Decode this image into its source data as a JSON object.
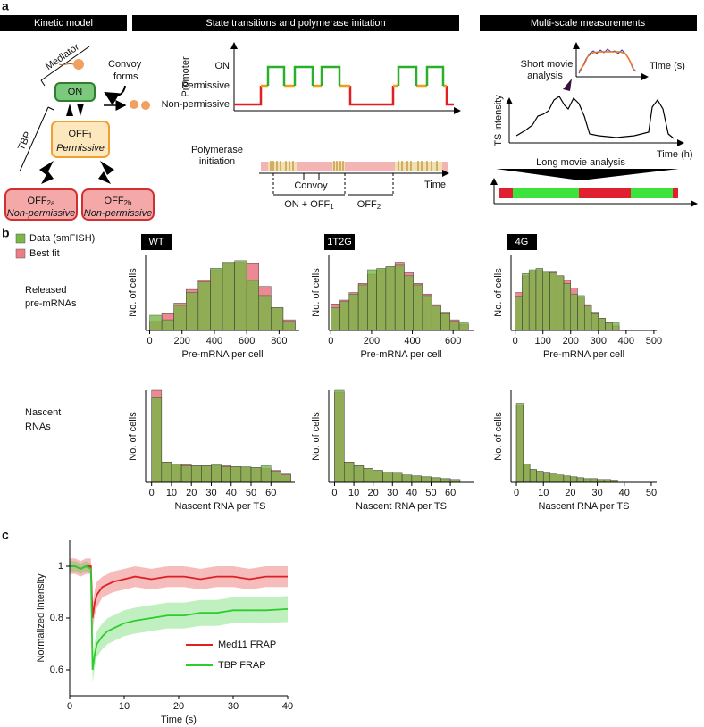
{
  "panel_a": {
    "label": "a",
    "headers": [
      "Kinetic model",
      "State transitions and polymerase initation",
      "Multi-scale measurements"
    ],
    "kinetic": {
      "mediator": "Mediator",
      "tbp": "TBP",
      "convoy": [
        "Convoy",
        "forms"
      ],
      "on": "ON",
      "off1": {
        "text": "OFF",
        "sub": "1",
        "note": "Permissive"
      },
      "off2a": {
        "text": "OFF",
        "sub": "2a",
        "note": "Non-permissive"
      },
      "off2b": {
        "text": "OFF",
        "sub": "2b",
        "note": "Non-permissive"
      }
    },
    "states": {
      "ylabel": "Promoter",
      "levels": [
        "ON",
        "Permissive",
        "Non-permissive"
      ],
      "polymerase": [
        "Polymerase",
        "initiation"
      ],
      "convoy": "Convoy",
      "time": "Time",
      "on_off1": {
        "text": "ON + OFF",
        "sub": "1"
      },
      "off2": {
        "text": "OFF",
        "sub": "2"
      }
    },
    "multi": {
      "short": [
        "Short movie",
        "analysis"
      ],
      "time_s": "Time (s)",
      "ts": "TS intensity",
      "time_h": "Time (h)",
      "long": "Long movie analysis"
    }
  },
  "panel_b": {
    "label": "b",
    "rows": [
      [
        "Released",
        "pre-mRNAs"
      ],
      [
        "Nascent",
        "RNAs"
      ]
    ],
    "legend": [
      {
        "name": "Data (smFISH)",
        "color": "#7ab648"
      },
      {
        "name": "Best fit",
        "color": "#ec7d87"
      }
    ]
  },
  "panel_c": {
    "label": "c"
  },
  "chart_data": [
    {
      "type": "histogram",
      "tag": "WT",
      "xlabel": "Pre-mRNA per cell",
      "ylabel": "No. of cells",
      "bins": [
        0,
        75,
        150,
        225,
        300,
        375,
        450,
        525,
        600,
        675,
        750,
        825,
        900
      ],
      "series": [
        {
          "color": "#7ab648",
          "values": [
            20,
            14,
            33,
            50,
            64,
            82,
            90,
            92,
            66,
            46,
            30,
            12
          ]
        },
        {
          "color": "#ec7d87",
          "values": [
            12,
            22,
            36,
            54,
            66,
            80,
            88,
            90,
            88,
            58,
            30,
            14
          ]
        }
      ],
      "xlim": [
        -25,
        925
      ],
      "ylim": [
        0,
        100
      ],
      "xticks": [
        0,
        200,
        400,
        600,
        800
      ]
    },
    {
      "type": "histogram",
      "tag": "1T2G",
      "xlabel": "Pre-mRNA per cell",
      "ylabel": "No. of cells",
      "bins": [
        0,
        45,
        90,
        135,
        180,
        225,
        270,
        315,
        360,
        405,
        450,
        495,
        540,
        585,
        630,
        675
      ],
      "series": [
        {
          "color": "#7ab648",
          "values": [
            30,
            38,
            48,
            60,
            80,
            82,
            84,
            86,
            72,
            60,
            46,
            32,
            22,
            12,
            10
          ]
        },
        {
          "color": "#ec7d87",
          "values": [
            35,
            40,
            50,
            62,
            74,
            80,
            84,
            90,
            76,
            62,
            48,
            34,
            24,
            14,
            8
          ]
        }
      ],
      "xlim": [
        -10,
        700
      ],
      "ylim": [
        0,
        100
      ],
      "xticks": [
        0,
        200,
        400,
        600
      ]
    },
    {
      "type": "histogram",
      "tag": "4G",
      "xlabel": "Pre-mRNA per cell",
      "ylabel": "No. of cells",
      "bins": [
        0,
        25,
        50,
        75,
        100,
        125,
        150,
        175,
        200,
        225,
        250,
        275,
        300,
        325,
        350,
        375
      ],
      "series": [
        {
          "color": "#7ab648",
          "values": [
            45,
            75,
            80,
            82,
            78,
            76,
            72,
            62,
            48,
            46,
            32,
            22,
            16,
            10,
            10
          ]
        },
        {
          "color": "#ec7d87",
          "values": [
            50,
            72,
            78,
            80,
            76,
            78,
            72,
            66,
            56,
            44,
            34,
            24,
            16,
            10,
            6
          ]
        }
      ],
      "xlim": [
        -15,
        510
      ],
      "ylim": [
        0,
        100
      ],
      "xticks": [
        0,
        100,
        200,
        300,
        400,
        500
      ]
    },
    {
      "type": "histogram",
      "xlabel": "Nascent RNA per TS",
      "ylabel": "No. of cells",
      "bins": [
        0,
        5,
        10,
        15,
        20,
        25,
        30,
        35,
        40,
        45,
        50,
        55,
        60,
        65,
        70
      ],
      "series": [
        {
          "color": "#7ab648",
          "values": [
            92,
            22,
            20,
            18,
            18,
            18,
            19,
            17,
            17,
            17,
            16,
            18,
            12,
            8
          ]
        },
        {
          "color": "#ec7d87",
          "values": [
            100,
            22,
            20,
            19,
            18,
            18,
            18,
            18,
            17,
            16,
            16,
            15,
            13,
            9
          ]
        }
      ],
      "xlim": [
        -3,
        72
      ],
      "ylim": [
        0,
        100
      ],
      "xticks": [
        0,
        10,
        20,
        30,
        40,
        50,
        60
      ]
    },
    {
      "type": "histogram",
      "xlabel": "Nascent RNA per TS",
      "ylabel": "No. of cells",
      "bins": [
        0,
        5,
        10,
        15,
        20,
        25,
        30,
        35,
        40,
        45,
        50,
        55,
        60,
        65
      ],
      "series": [
        {
          "color": "#7ab648",
          "values": [
            100,
            22,
            18,
            15,
            13,
            11,
            10,
            8,
            7,
            6,
            5,
            4,
            3
          ]
        },
        {
          "color": "#ec7d87",
          "values": [
            98,
            22,
            18,
            15,
            13,
            11,
            9,
            8,
            7,
            6,
            5,
            4,
            3
          ]
        }
      ],
      "xlim": [
        -3,
        72
      ],
      "ylim": [
        0,
        100
      ],
      "xticks": [
        0,
        10,
        20,
        30,
        40,
        50,
        60
      ]
    },
    {
      "type": "histogram",
      "xlabel": "Nascent RNA per TS",
      "ylabel": "No. of cells",
      "bins": [
        0,
        2.5,
        5,
        7.5,
        10,
        12.5,
        15,
        17.5,
        20,
        22.5,
        25,
        27.5,
        30,
        32.5,
        35,
        37.5
      ],
      "series": [
        {
          "color": "#7ab648",
          "values": [
            86,
            20,
            14,
            12,
            10,
            9,
            8,
            7,
            6,
            5,
            4,
            4,
            3,
            3,
            2
          ]
        },
        {
          "color": "#ec7d87",
          "values": [
            84,
            20,
            14,
            12,
            10,
            9,
            8,
            7,
            6,
            5,
            4,
            4,
            3,
            3,
            2
          ]
        }
      ],
      "xlim": [
        -2,
        52
      ],
      "ylim": [
        0,
        100
      ],
      "xticks": [
        0,
        10,
        20,
        30,
        40,
        50
      ]
    },
    {
      "type": "line",
      "xlabel": "Time (s)",
      "ylabel": "Normalized intensity",
      "x": [
        0,
        1,
        2,
        3,
        3.9,
        4.2,
        4.6,
        5,
        6,
        7,
        8,
        10,
        12,
        15,
        18,
        21,
        24,
        27,
        30,
        33,
        36,
        40
      ],
      "series": [
        {
          "name": "Med11 FRAP",
          "color": "#e02020",
          "values": [
            1.0,
            1.0,
            0.99,
            1.0,
            1.0,
            0.8,
            0.86,
            0.89,
            0.92,
            0.93,
            0.94,
            0.95,
            0.96,
            0.95,
            0.96,
            0.96,
            0.95,
            0.96,
            0.96,
            0.95,
            0.96,
            0.96
          ],
          "errors": [
            0.03,
            0.03,
            0.03,
            0.03,
            0.03,
            0.05,
            0.05,
            0.05,
            0.04,
            0.04,
            0.04,
            0.04,
            0.04,
            0.04,
            0.04,
            0.04,
            0.04,
            0.04,
            0.04,
            0.04,
            0.04,
            0.04
          ]
        },
        {
          "name": "TBP FRAP",
          "color": "#2ecc2e",
          "values": [
            1.0,
            1.0,
            0.99,
            1.0,
            0.99,
            0.6,
            0.66,
            0.7,
            0.73,
            0.75,
            0.76,
            0.78,
            0.79,
            0.8,
            0.81,
            0.81,
            0.82,
            0.82,
            0.83,
            0.83,
            0.83,
            0.835
          ],
          "errors": [
            0.02,
            0.02,
            0.02,
            0.02,
            0.02,
            0.05,
            0.05,
            0.05,
            0.05,
            0.05,
            0.05,
            0.05,
            0.05,
            0.05,
            0.05,
            0.05,
            0.05,
            0.05,
            0.05,
            0.05,
            0.05,
            0.05
          ]
        }
      ],
      "xlim": [
        0,
        40
      ],
      "ylim": [
        0.5,
        1.1
      ],
      "xticks": [
        0,
        10,
        20,
        30,
        40
      ],
      "yticks": [
        0.6,
        0.8,
        1
      ]
    }
  ]
}
